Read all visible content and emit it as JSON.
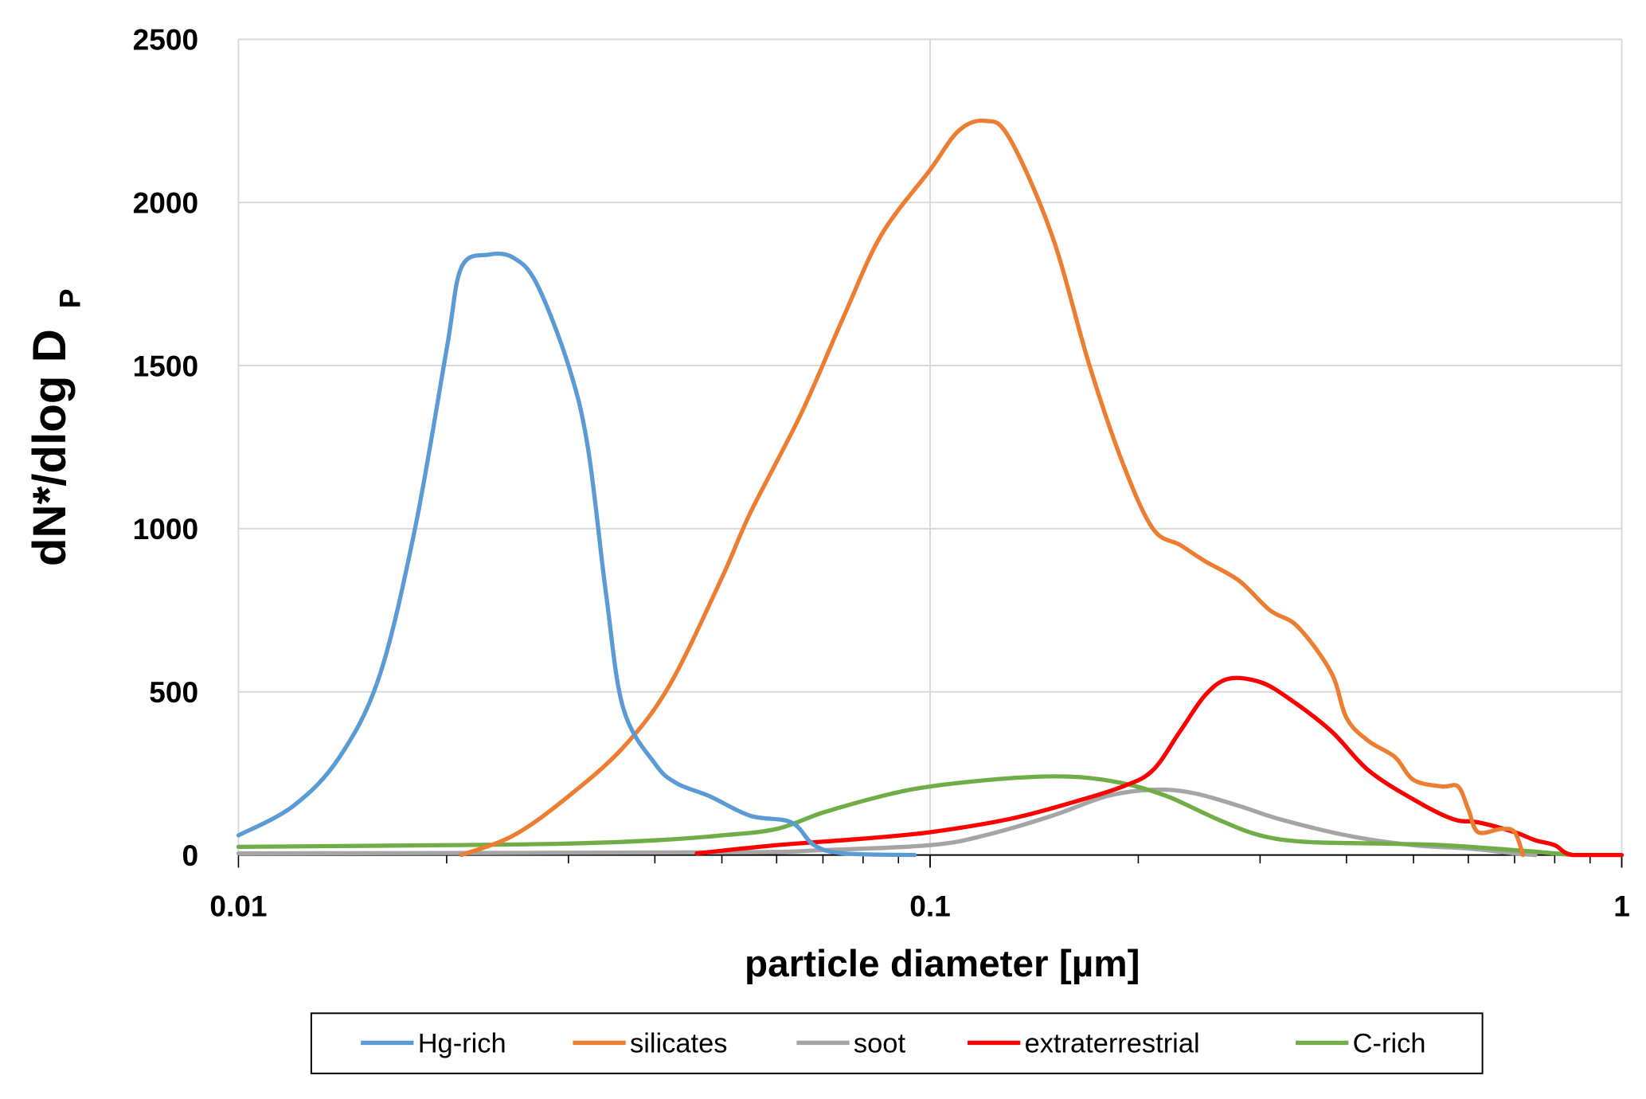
{
  "chart_data": {
    "type": "line",
    "title": "",
    "xlabel": "particle diameter [µm]",
    "ylabel_main": "dN*/dlog D",
    "ylabel_sub": "P",
    "xscale": "log",
    "xlim": [
      0.01,
      1
    ],
    "ylim": [
      0,
      2500
    ],
    "grid": true,
    "legend_position": "bottom",
    "x_ticks": [
      {
        "v": 0.01,
        "label": "0.01"
      },
      {
        "v": 0.1,
        "label": "0.1"
      },
      {
        "v": 1,
        "label": "1"
      }
    ],
    "y_ticks": [
      {
        "v": 0,
        "label": "0"
      },
      {
        "v": 500,
        "label": "500"
      },
      {
        "v": 1000,
        "label": "1000"
      },
      {
        "v": 1500,
        "label": "1500"
      },
      {
        "v": 2000,
        "label": "2000"
      },
      {
        "v": 2500,
        "label": "2500"
      }
    ],
    "series": [
      {
        "name": "Hg-rich",
        "color": "#5b9bd5",
        "points": [
          [
            0.01,
            60
          ],
          [
            0.012,
            150
          ],
          [
            0.014,
            300
          ],
          [
            0.016,
            550
          ],
          [
            0.018,
            1000
          ],
          [
            0.02,
            1550
          ],
          [
            0.021,
            1800
          ],
          [
            0.023,
            1840
          ],
          [
            0.025,
            1830
          ],
          [
            0.027,
            1750
          ],
          [
            0.03,
            1500
          ],
          [
            0.032,
            1250
          ],
          [
            0.034,
            800
          ],
          [
            0.036,
            450
          ],
          [
            0.04,
            280
          ],
          [
            0.043,
            220
          ],
          [
            0.048,
            180
          ],
          [
            0.055,
            120
          ],
          [
            0.063,
            100
          ],
          [
            0.068,
            30
          ],
          [
            0.075,
            5
          ],
          [
            0.095,
            0
          ]
        ]
      },
      {
        "name": "silicates",
        "color": "#ed7d31",
        "points": [
          [
            0.021,
            0
          ],
          [
            0.025,
            60
          ],
          [
            0.03,
            180
          ],
          [
            0.036,
            330
          ],
          [
            0.042,
            520
          ],
          [
            0.05,
            850
          ],
          [
            0.055,
            1050
          ],
          [
            0.065,
            1350
          ],
          [
            0.075,
            1650
          ],
          [
            0.085,
            1900
          ],
          [
            0.1,
            2100
          ],
          [
            0.11,
            2220
          ],
          [
            0.12,
            2250
          ],
          [
            0.13,
            2200
          ],
          [
            0.15,
            1900
          ],
          [
            0.17,
            1500
          ],
          [
            0.19,
            1200
          ],
          [
            0.21,
            1000
          ],
          [
            0.23,
            950
          ],
          [
            0.25,
            900
          ],
          [
            0.28,
            840
          ],
          [
            0.31,
            750
          ],
          [
            0.34,
            700
          ],
          [
            0.38,
            560
          ],
          [
            0.4,
            420
          ],
          [
            0.43,
            350
          ],
          [
            0.47,
            300
          ],
          [
            0.5,
            230
          ],
          [
            0.55,
            210
          ],
          [
            0.58,
            210
          ],
          [
            0.6,
            140
          ],
          [
            0.62,
            70
          ],
          [
            0.67,
            80
          ],
          [
            0.7,
            70
          ],
          [
            0.72,
            0
          ]
        ]
      },
      {
        "name": "soot",
        "color": "#a5a5a5",
        "points": [
          [
            0.01,
            5
          ],
          [
            0.05,
            8
          ],
          [
            0.07,
            15
          ],
          [
            0.1,
            30
          ],
          [
            0.12,
            60
          ],
          [
            0.15,
            120
          ],
          [
            0.18,
            180
          ],
          [
            0.21,
            200
          ],
          [
            0.24,
            190
          ],
          [
            0.28,
            150
          ],
          [
            0.32,
            110
          ],
          [
            0.4,
            60
          ],
          [
            0.5,
            30
          ],
          [
            0.6,
            20
          ],
          [
            0.7,
            5
          ],
          [
            0.75,
            0
          ]
        ]
      },
      {
        "name": "extraterrestrial",
        "color": "#ff0000",
        "points": [
          [
            0.046,
            5
          ],
          [
            0.06,
            30
          ],
          [
            0.08,
            50
          ],
          [
            0.1,
            70
          ],
          [
            0.13,
            110
          ],
          [
            0.16,
            160
          ],
          [
            0.19,
            210
          ],
          [
            0.21,
            260
          ],
          [
            0.23,
            380
          ],
          [
            0.25,
            490
          ],
          [
            0.27,
            540
          ],
          [
            0.3,
            530
          ],
          [
            0.33,
            480
          ],
          [
            0.38,
            380
          ],
          [
            0.43,
            260
          ],
          [
            0.5,
            170
          ],
          [
            0.57,
            110
          ],
          [
            0.62,
            100
          ],
          [
            0.7,
            70
          ],
          [
            0.75,
            45
          ],
          [
            0.8,
            30
          ],
          [
            0.85,
            0
          ],
          [
            1,
            0
          ]
        ]
      },
      {
        "name": "C-rich",
        "color": "#70ad47",
        "points": [
          [
            0.01,
            25
          ],
          [
            0.02,
            30
          ],
          [
            0.03,
            35
          ],
          [
            0.04,
            45
          ],
          [
            0.05,
            60
          ],
          [
            0.06,
            80
          ],
          [
            0.07,
            130
          ],
          [
            0.085,
            180
          ],
          [
            0.1,
            210
          ],
          [
            0.13,
            235
          ],
          [
            0.16,
            240
          ],
          [
            0.19,
            220
          ],
          [
            0.22,
            180
          ],
          [
            0.26,
            110
          ],
          [
            0.3,
            60
          ],
          [
            0.35,
            40
          ],
          [
            0.45,
            35
          ],
          [
            0.55,
            30
          ],
          [
            0.7,
            15
          ],
          [
            0.85,
            0
          ]
        ]
      }
    ]
  }
}
